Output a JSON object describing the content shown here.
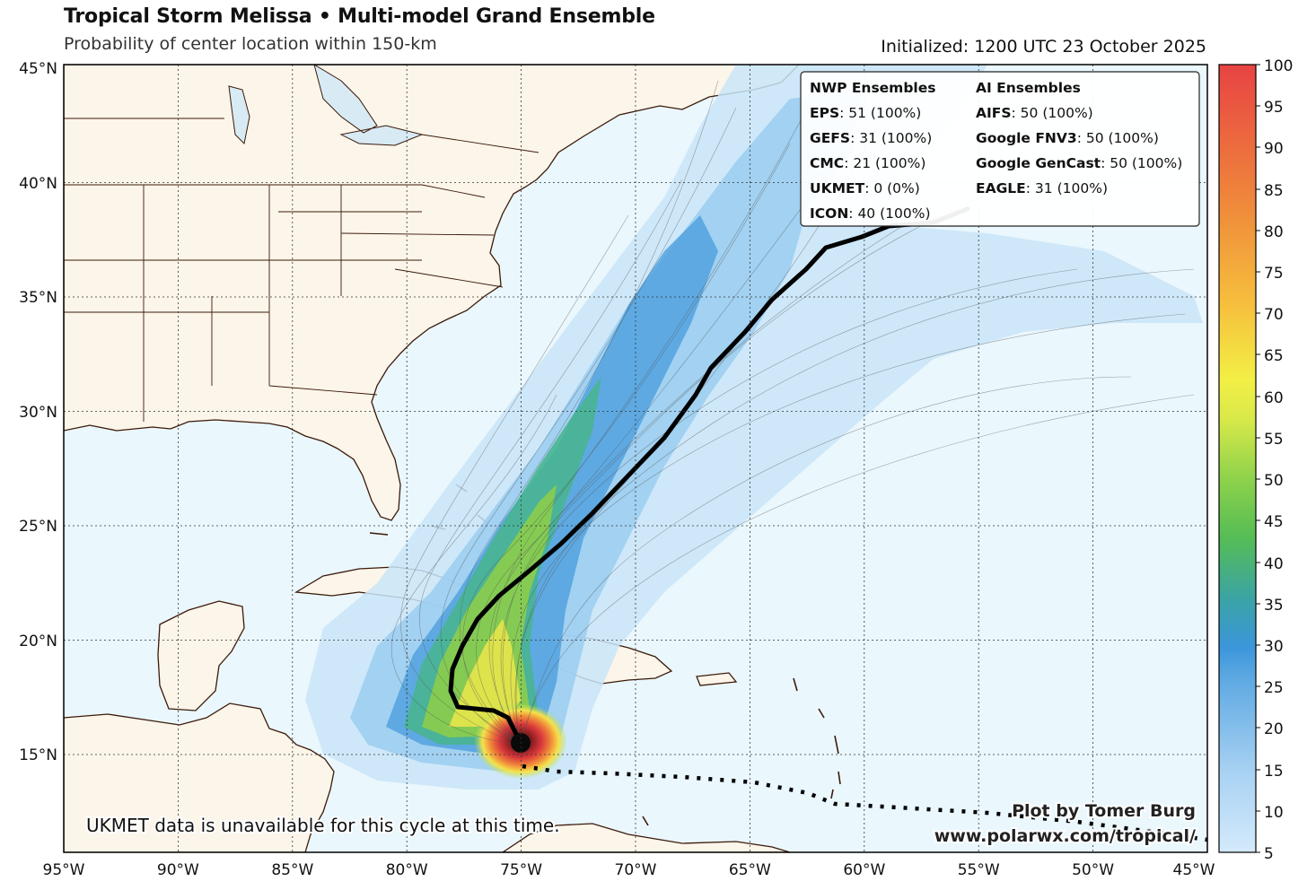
{
  "header": {
    "title": "Tropical Storm Melissa • Multi-model Grand Ensemble",
    "subtitle": "Probability of center location within 150-km",
    "initialized": "Initialized: 1200 UTC 23 October 2025"
  },
  "axes": {
    "lat_labels": [
      "45°N",
      "40°N",
      "35°N",
      "30°N",
      "25°N",
      "20°N",
      "15°N"
    ],
    "lon_labels": [
      "95°W",
      "90°W",
      "85°W",
      "80°W",
      "75°W",
      "70°W",
      "65°W",
      "60°W",
      "55°W",
      "50°W",
      "45°W"
    ]
  },
  "colorbar": {
    "ticks": [
      "100",
      "95",
      "90",
      "85",
      "80",
      "75",
      "70",
      "65",
      "60",
      "55",
      "50",
      "45",
      "40",
      "35",
      "30",
      "25",
      "20",
      "15",
      "10",
      "5"
    ]
  },
  "legend": {
    "nwp_title": "NWP Ensembles",
    "nwp": [
      {
        "name": "EPS",
        "value": ": 51 (100%)"
      },
      {
        "name": "GEFS",
        "value": ": 31 (100%)"
      },
      {
        "name": "CMC",
        "value": ": 21 (100%)"
      },
      {
        "name": "UKMET",
        "value": ": 0 (0%)"
      },
      {
        "name": "ICON",
        "value": ": 40 (100%)"
      }
    ],
    "ai_title": "AI Ensembles",
    "ai": [
      {
        "name": "AIFS",
        "value": ": 50 (100%)"
      },
      {
        "name": "Google FNV3",
        "value": ": 50 (100%)"
      },
      {
        "name": "Google GenCast",
        "value": ": 50 (100%)"
      },
      {
        "name": "EAGLE",
        "value": ": 31 (100%)"
      }
    ]
  },
  "notes": {
    "ukmet": "UKMET data is unavailable for this cycle at this time.",
    "credit": "Plot by Tomer Burg",
    "url": "www.polarwx.com/tropical/"
  },
  "colors": {
    "ocean": "#eaf7fd",
    "land": "#fcf5ea",
    "coast": "#3b1a0a",
    "track": "#000000"
  }
}
